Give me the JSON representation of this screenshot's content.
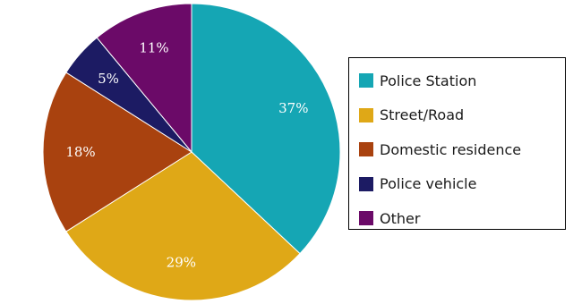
{
  "chart_data": {
    "type": "pie",
    "title": "",
    "slices": [
      {
        "label": "Police Station",
        "value": 37,
        "value_label": "37%",
        "color": "#15a6b4"
      },
      {
        "label": "Street/Road",
        "value": 29,
        "value_label": "29%",
        "color": "#dfa817"
      },
      {
        "label": "Domestic residence",
        "value": 18,
        "value_label": "18%",
        "color": "#a9420f"
      },
      {
        "label": "Police vehicle",
        "value": 5,
        "value_label": "5%",
        "color": "#1c1b63"
      },
      {
        "label": "Other",
        "value": 11,
        "value_label": "11%",
        "color": "#6b0a68"
      }
    ],
    "start": "12 o'clock",
    "direction": "clockwise",
    "legend_position": "right"
  },
  "legend": {
    "items": [
      {
        "label": "Police Station"
      },
      {
        "label": "Street/Road"
      },
      {
        "label": "Domestic residence"
      },
      {
        "label": "Police vehicle"
      },
      {
        "label": "Other"
      }
    ]
  }
}
